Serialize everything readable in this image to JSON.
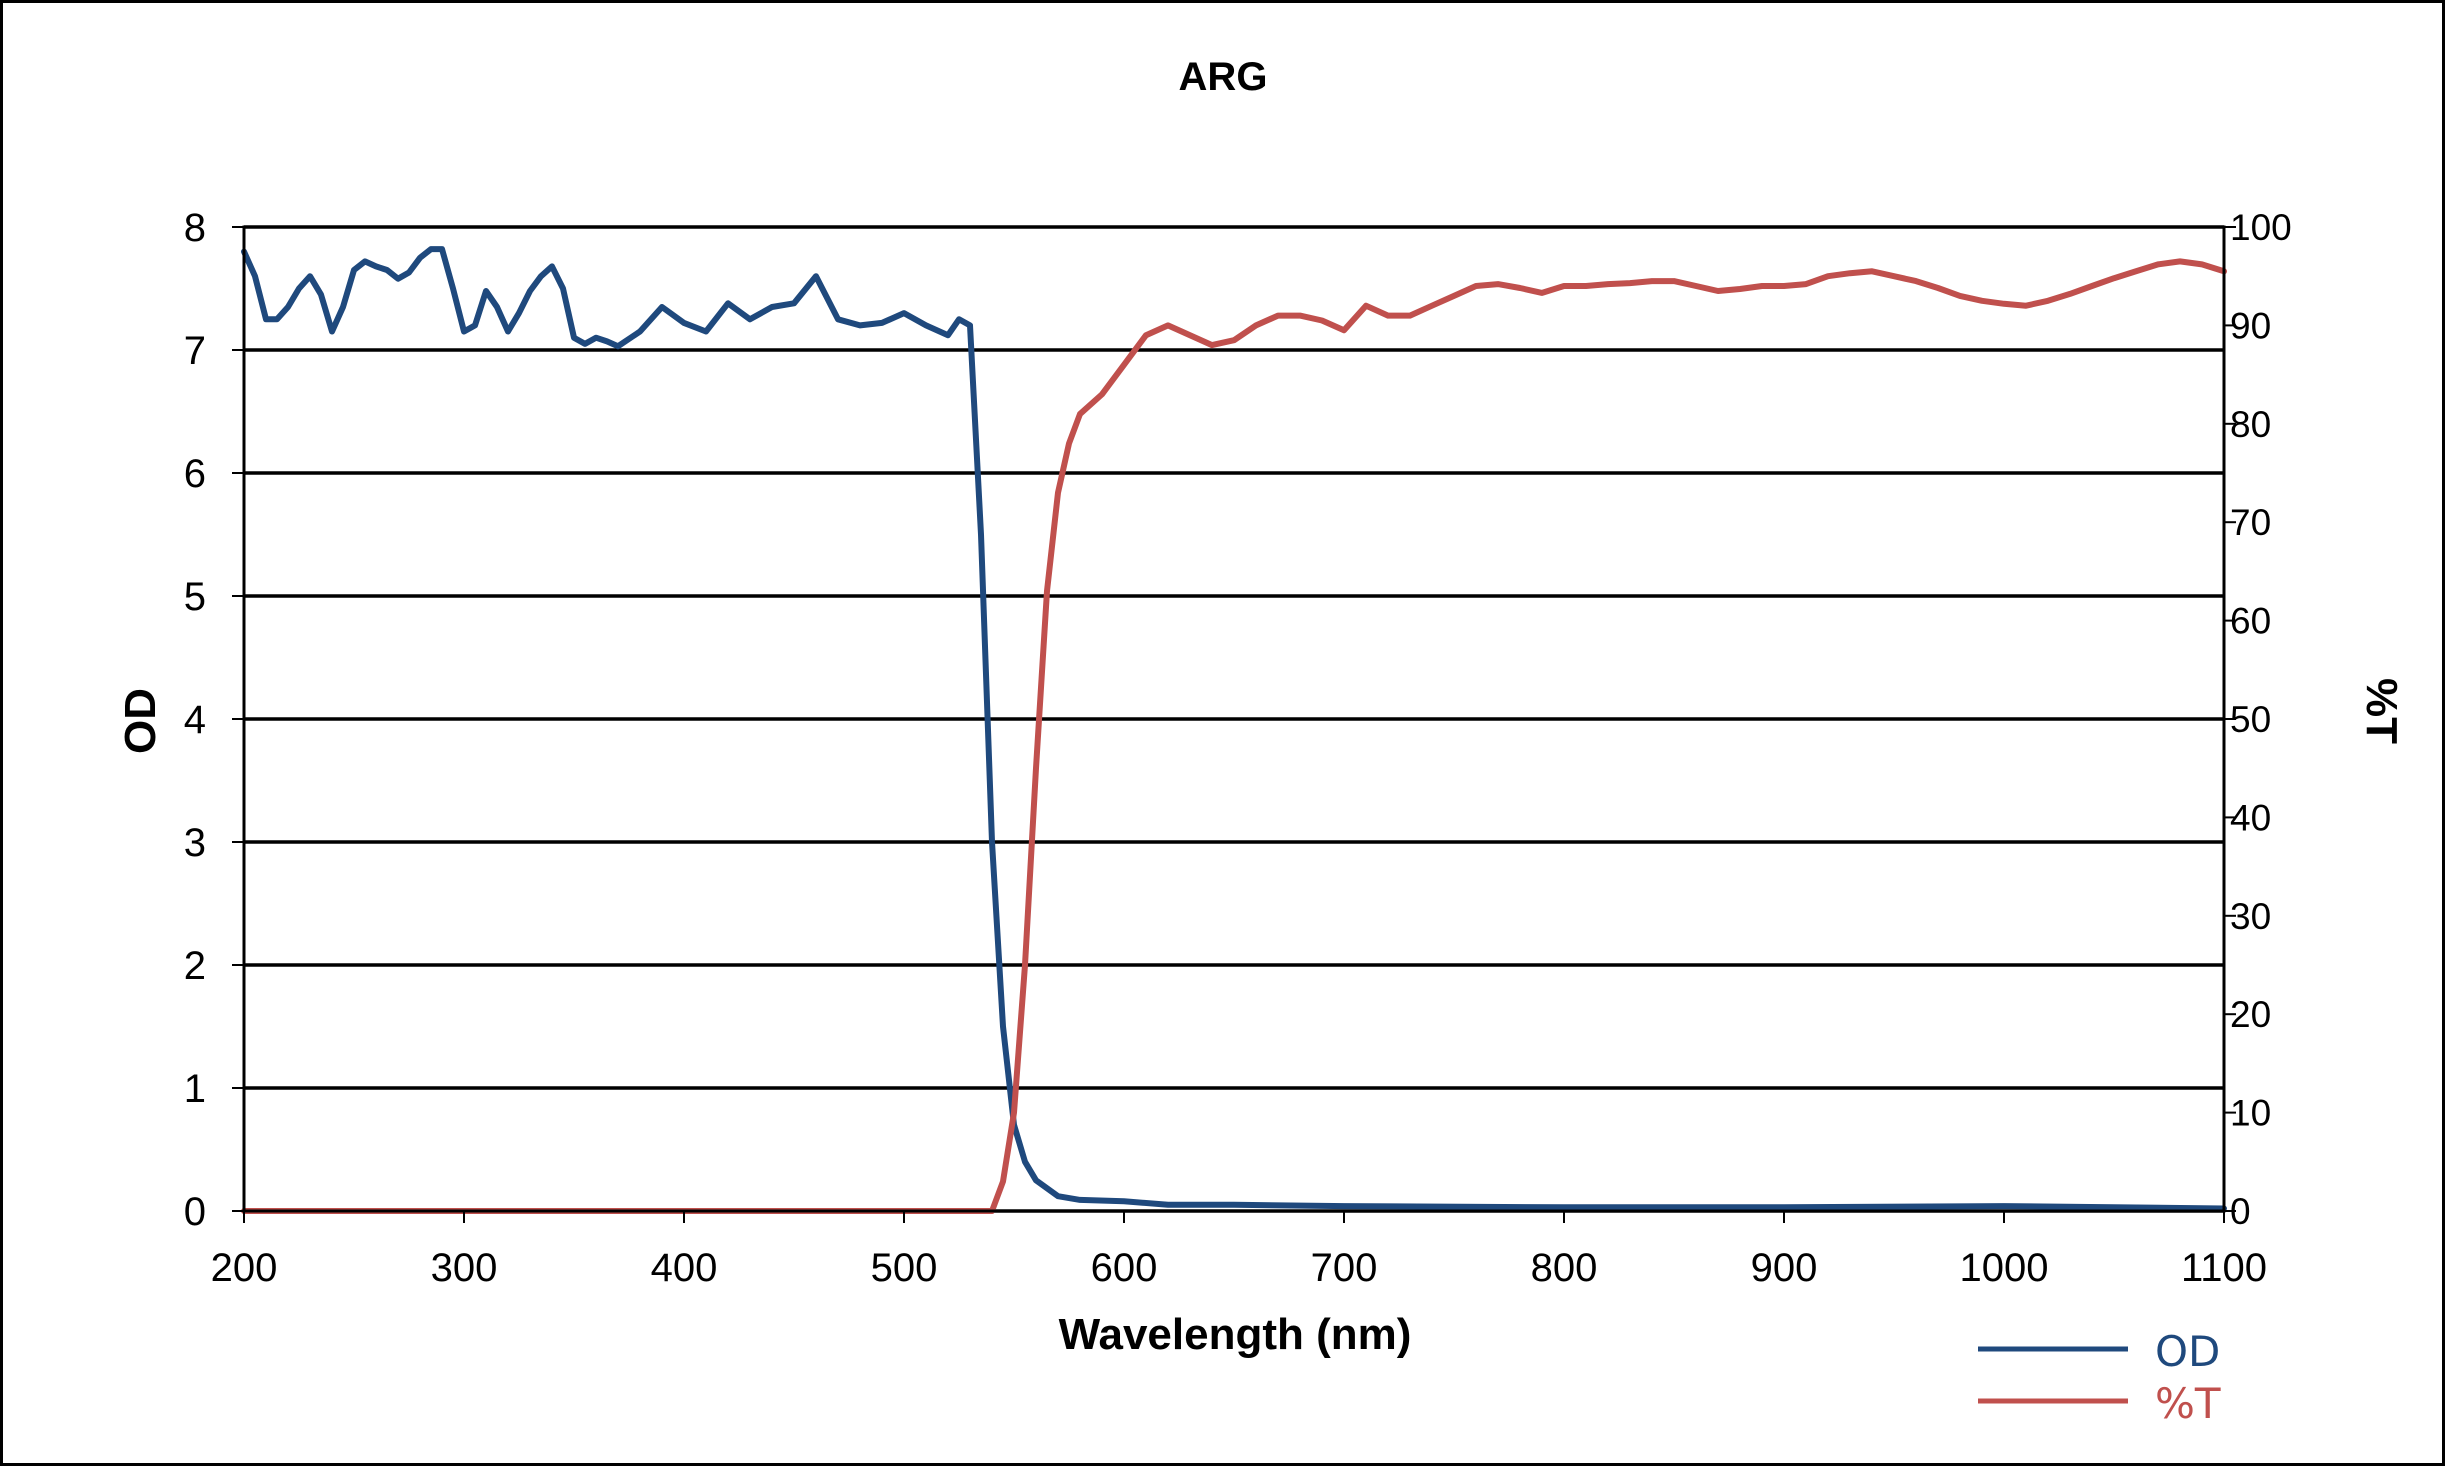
{
  "chart_data": {
    "type": "line",
    "title": "ARG",
    "xlabel": "Wavelength (nm)",
    "ylabel": "OD",
    "y2label": "%T",
    "xlim": [
      200,
      1100
    ],
    "ylim": [
      0,
      8
    ],
    "y2lim": [
      0,
      100
    ],
    "x_ticks": [
      200,
      300,
      400,
      500,
      600,
      700,
      800,
      900,
      1000,
      1100
    ],
    "y_ticks": [
      0,
      1,
      2,
      3,
      4,
      5,
      6,
      7,
      8
    ],
    "y2_ticks": [
      0,
      10,
      20,
      30,
      40,
      50,
      60,
      70,
      80,
      90,
      100
    ],
    "grid": "horizontal",
    "legend": "bottom-right",
    "series": [
      {
        "name": "OD",
        "axis": "left",
        "color": "#1f497d",
        "points": [
          [
            200,
            7.8
          ],
          [
            205,
            7.6
          ],
          [
            210,
            7.25
          ],
          [
            215,
            7.25
          ],
          [
            220,
            7.35
          ],
          [
            225,
            7.5
          ],
          [
            230,
            7.6
          ],
          [
            235,
            7.45
          ],
          [
            240,
            7.15
          ],
          [
            245,
            7.35
          ],
          [
            250,
            7.65
          ],
          [
            255,
            7.72
          ],
          [
            260,
            7.68
          ],
          [
            265,
            7.65
          ],
          [
            270,
            7.58
          ],
          [
            275,
            7.63
          ],
          [
            280,
            7.75
          ],
          [
            285,
            7.82
          ],
          [
            290,
            7.82
          ],
          [
            295,
            7.5
          ],
          [
            300,
            7.15
          ],
          [
            305,
            7.2
          ],
          [
            310,
            7.48
          ],
          [
            315,
            7.35
          ],
          [
            320,
            7.15
          ],
          [
            325,
            7.3
          ],
          [
            330,
            7.48
          ],
          [
            335,
            7.6
          ],
          [
            340,
            7.68
          ],
          [
            345,
            7.5
          ],
          [
            350,
            7.1
          ],
          [
            355,
            7.05
          ],
          [
            360,
            7.1
          ],
          [
            365,
            7.07
          ],
          [
            370,
            7.03
          ],
          [
            380,
            7.15
          ],
          [
            390,
            7.35
          ],
          [
            400,
            7.22
          ],
          [
            410,
            7.15
          ],
          [
            420,
            7.38
          ],
          [
            430,
            7.25
          ],
          [
            440,
            7.35
          ],
          [
            450,
            7.38
          ],
          [
            460,
            7.6
          ],
          [
            470,
            7.25
          ],
          [
            480,
            7.2
          ],
          [
            490,
            7.22
          ],
          [
            500,
            7.3
          ],
          [
            510,
            7.2
          ],
          [
            520,
            7.12
          ],
          [
            525,
            7.25
          ],
          [
            530,
            7.2
          ],
          [
            535,
            5.5
          ],
          [
            540,
            3.0
          ],
          [
            545,
            1.5
          ],
          [
            550,
            0.7
          ],
          [
            555,
            0.4
          ],
          [
            560,
            0.25
          ],
          [
            570,
            0.12
          ],
          [
            580,
            0.09
          ],
          [
            600,
            0.08
          ],
          [
            620,
            0.05
          ],
          [
            650,
            0.05
          ],
          [
            700,
            0.04
          ],
          [
            800,
            0.03
          ],
          [
            900,
            0.03
          ],
          [
            1000,
            0.04
          ],
          [
            1100,
            0.02
          ]
        ]
      },
      {
        "name": "%T",
        "axis": "right",
        "color": "#c0504d",
        "points": [
          [
            200,
            0
          ],
          [
            540,
            0
          ],
          [
            545,
            3
          ],
          [
            550,
            10
          ],
          [
            555,
            25
          ],
          [
            560,
            45
          ],
          [
            565,
            63
          ],
          [
            570,
            73
          ],
          [
            575,
            78
          ],
          [
            580,
            81
          ],
          [
            590,
            83
          ],
          [
            600,
            86
          ],
          [
            610,
            89
          ],
          [
            620,
            90
          ],
          [
            630,
            89
          ],
          [
            640,
            88
          ],
          [
            650,
            88.5
          ],
          [
            660,
            90
          ],
          [
            670,
            91
          ],
          [
            680,
            91
          ],
          [
            690,
            90.5
          ],
          [
            700,
            89.5
          ],
          [
            710,
            92
          ],
          [
            720,
            91
          ],
          [
            730,
            91
          ],
          [
            740,
            92
          ],
          [
            750,
            93
          ],
          [
            760,
            94
          ],
          [
            770,
            94.2
          ],
          [
            780,
            93.8
          ],
          [
            790,
            93.3
          ],
          [
            800,
            94
          ],
          [
            810,
            94
          ],
          [
            820,
            94.2
          ],
          [
            830,
            94.3
          ],
          [
            840,
            94.5
          ],
          [
            850,
            94.5
          ],
          [
            860,
            94
          ],
          [
            870,
            93.5
          ],
          [
            880,
            93.7
          ],
          [
            890,
            94
          ],
          [
            900,
            94
          ],
          [
            910,
            94.2
          ],
          [
            920,
            95
          ],
          [
            930,
            95.3
          ],
          [
            940,
            95.5
          ],
          [
            950,
            95
          ],
          [
            960,
            94.5
          ],
          [
            970,
            93.8
          ],
          [
            980,
            93
          ],
          [
            990,
            92.5
          ],
          [
            1000,
            92.2
          ],
          [
            1010,
            92
          ],
          [
            1020,
            92.5
          ],
          [
            1030,
            93.2
          ],
          [
            1040,
            94
          ],
          [
            1050,
            94.8
          ],
          [
            1060,
            95.5
          ],
          [
            1070,
            96.2
          ],
          [
            1080,
            96.5
          ],
          [
            1090,
            96.2
          ],
          [
            1100,
            95.5
          ]
        ]
      }
    ]
  }
}
